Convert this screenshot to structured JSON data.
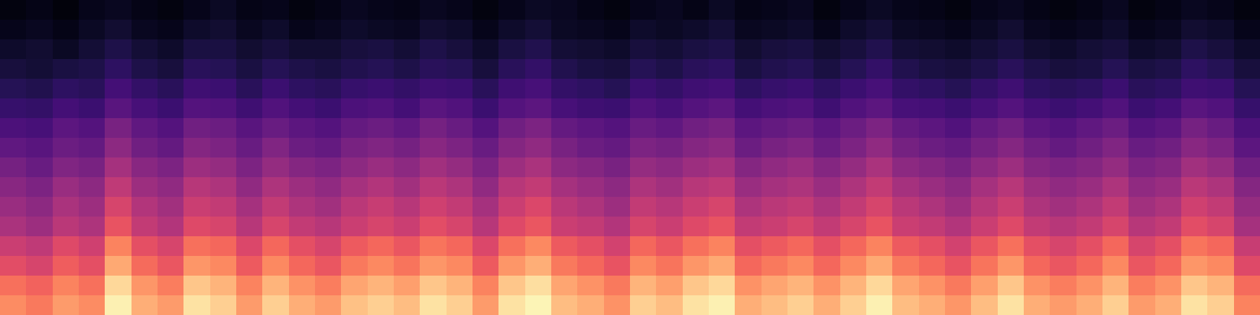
{
  "chart_data": {
    "type": "heatmap",
    "color": "magma",
    "tick_labels": false,
    "color_range": [
      0,
      100
    ],
    "values": [
      [
        3,
        4,
        2,
        5,
        6,
        4,
        3,
        5,
        7,
        4,
        5,
        3,
        4,
        6,
        5,
        4,
        6,
        5,
        3,
        5,
        7,
        6,
        4,
        3,
        5,
        6,
        4,
        7,
        4,
        5,
        6,
        3,
        5,
        7,
        5,
        4,
        3,
        5,
        6,
        4,
        3,
        4,
        6,
        3,
        4,
        6,
        5,
        3
      ],
      [
        5,
        6,
        4,
        7,
        9,
        6,
        5,
        8,
        9,
        6,
        8,
        5,
        6,
        8,
        7,
        6,
        9,
        8,
        5,
        8,
        10,
        7,
        6,
        5,
        8,
        7,
        8,
        10,
        6,
        7,
        8,
        5,
        8,
        10,
        7,
        6,
        5,
        7,
        9,
        6,
        5,
        6,
        8,
        5,
        6,
        9,
        8,
        5
      ],
      [
        8,
        9,
        7,
        10,
        13,
        10,
        8,
        12,
        12,
        9,
        11,
        9,
        9,
        11,
        12,
        10,
        13,
        11,
        8,
        12,
        14,
        10,
        9,
        8,
        11,
        10,
        12,
        13,
        9,
        11,
        12,
        9,
        11,
        14,
        10,
        9,
        8,
        10,
        12,
        9,
        8,
        10,
        11,
        8,
        9,
        13,
        11,
        8
      ],
      [
        11,
        10,
        12,
        13,
        17,
        13,
        11,
        16,
        15,
        12,
        15,
        13,
        12,
        14,
        15,
        13,
        16,
        15,
        11,
        16,
        18,
        14,
        12,
        11,
        15,
        13,
        16,
        17,
        12,
        14,
        15,
        12,
        15,
        18,
        14,
        12,
        11,
        13,
        16,
        13,
        11,
        12,
        15,
        12,
        13,
        17,
        15,
        11
      ],
      [
        15,
        14,
        17,
        16,
        22,
        18,
        16,
        21,
        20,
        16,
        20,
        17,
        16,
        19,
        20,
        18,
        21,
        20,
        16,
        21,
        23,
        18,
        17,
        15,
        20,
        18,
        21,
        22,
        17,
        19,
        20,
        17,
        20,
        23,
        18,
        17,
        15,
        18,
        21,
        17,
        16,
        17,
        20,
        16,
        17,
        21,
        20,
        15
      ],
      [
        19,
        18,
        22,
        20,
        27,
        23,
        20,
        26,
        25,
        21,
        25,
        22,
        20,
        24,
        25,
        22,
        27,
        25,
        20,
        26,
        28,
        23,
        21,
        20,
        25,
        23,
        26,
        28,
        22,
        24,
        25,
        21,
        25,
        28,
        23,
        22,
        20,
        23,
        26,
        22,
        20,
        22,
        25,
        20,
        22,
        27,
        25,
        19
      ],
      [
        24,
        23,
        28,
        26,
        35,
        29,
        26,
        33,
        32,
        27,
        31,
        28,
        26,
        30,
        32,
        29,
        34,
        31,
        26,
        33,
        36,
        30,
        28,
        26,
        31,
        29,
        33,
        35,
        28,
        30,
        32,
        28,
        32,
        36,
        30,
        28,
        25,
        30,
        33,
        28,
        26,
        29,
        32,
        26,
        28,
        34,
        31,
        24
      ],
      [
        29,
        27,
        32,
        30,
        40,
        33,
        30,
        38,
        36,
        31,
        37,
        32,
        30,
        35,
        37,
        34,
        39,
        36,
        31,
        38,
        41,
        35,
        32,
        30,
        36,
        34,
        38,
        40,
        32,
        35,
        37,
        32,
        36,
        41,
        34,
        32,
        30,
        34,
        38,
        33,
        30,
        33,
        37,
        31,
        33,
        39,
        36,
        28
      ],
      [
        34,
        31,
        37,
        35,
        46,
        39,
        36,
        44,
        42,
        36,
        42,
        38,
        36,
        40,
        43,
        40,
        45,
        42,
        36,
        44,
        47,
        40,
        38,
        35,
        42,
        40,
        44,
        46,
        38,
        41,
        43,
        38,
        42,
        47,
        40,
        38,
        35,
        40,
        44,
        38,
        36,
        38,
        42,
        36,
        38,
        45,
        42,
        33
      ],
      [
        39,
        36,
        43,
        40,
        52,
        44,
        41,
        50,
        48,
        41,
        48,
        44,
        41,
        46,
        49,
        45,
        51,
        48,
        41,
        50,
        53,
        46,
        43,
        40,
        48,
        45,
        50,
        52,
        43,
        46,
        48,
        43,
        48,
        53,
        46,
        43,
        40,
        46,
        50,
        44,
        41,
        43,
        48,
        41,
        43,
        51,
        48,
        38
      ],
      [
        43,
        40,
        47,
        44,
        58,
        49,
        45,
        55,
        53,
        46,
        53,
        48,
        45,
        51,
        54,
        50,
        56,
        53,
        46,
        55,
        59,
        51,
        48,
        44,
        53,
        50,
        55,
        58,
        48,
        51,
        53,
        48,
        53,
        58,
        51,
        48,
        44,
        50,
        55,
        48,
        45,
        48,
        53,
        45,
        48,
        56,
        53,
        42
      ],
      [
        47,
        44,
        51,
        48,
        63,
        53,
        49,
        60,
        58,
        50,
        58,
        53,
        50,
        55,
        58,
        55,
        61,
        58,
        50,
        60,
        64,
        55,
        53,
        49,
        58,
        55,
        60,
        63,
        53,
        55,
        58,
        53,
        58,
        63,
        55,
        53,
        49,
        55,
        60,
        53,
        50,
        53,
        58,
        50,
        53,
        61,
        58,
        46
      ],
      [
        55,
        52,
        60,
        56,
        74,
        62,
        58,
        70,
        68,
        59,
        68,
        62,
        58,
        65,
        68,
        64,
        71,
        68,
        59,
        70,
        75,
        65,
        62,
        57,
        68,
        64,
        70,
        74,
        62,
        65,
        68,
        62,
        68,
        74,
        65,
        62,
        57,
        64,
        70,
        62,
        58,
        62,
        68,
        58,
        62,
        71,
        68,
        54
      ],
      [
        61,
        58,
        66,
        62,
        82,
        69,
        64,
        78,
        75,
        65,
        75,
        68,
        64,
        72,
        75,
        71,
        78,
        75,
        65,
        78,
        83,
        72,
        68,
        63,
        75,
        71,
        78,
        82,
        68,
        72,
        75,
        68,
        75,
        82,
        72,
        68,
        63,
        71,
        78,
        68,
        64,
        68,
        75,
        64,
        68,
        78,
        75,
        60
      ],
      [
        70,
        67,
        74,
        70,
        92,
        78,
        73,
        88,
        84,
        74,
        84,
        77,
        73,
        81,
        84,
        80,
        88,
        84,
        74,
        88,
        93,
        81,
        77,
        72,
        84,
        80,
        88,
        92,
        77,
        81,
        84,
        77,
        84,
        92,
        81,
        77,
        72,
        80,
        88,
        77,
        73,
        77,
        84,
        73,
        77,
        88,
        84,
        69
      ],
      [
        76,
        72,
        79,
        76,
        97,
        83,
        79,
        94,
        90,
        79,
        90,
        83,
        79,
        87,
        90,
        86,
        94,
        90,
        79,
        94,
        98,
        86,
        83,
        77,
        90,
        86,
        94,
        97,
        83,
        86,
        90,
        83,
        90,
        97,
        86,
        83,
        78,
        86,
        94,
        83,
        79,
        83,
        90,
        79,
        83,
        94,
        90,
        74
      ]
    ]
  }
}
